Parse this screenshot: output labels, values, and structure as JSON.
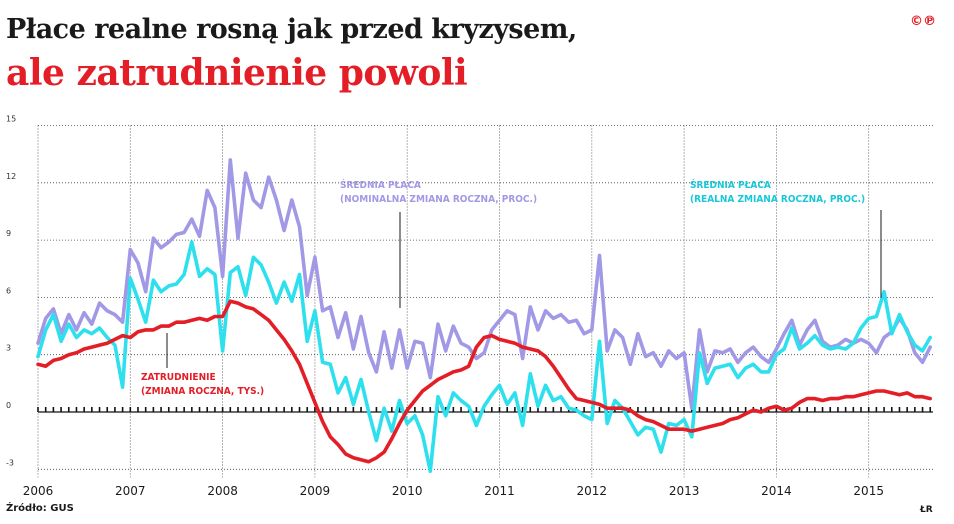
{
  "header": {
    "title_line1": "Płace realne rosną jak przed kryzysem,",
    "title_line2": "ale zatrudnienie powoli",
    "badge": "©℗"
  },
  "footer": {
    "source": "Źródło: GUS",
    "credit": "ŁR"
  },
  "colors": {
    "nominal": "#a199e6",
    "real": "#2ee0ee",
    "employment": "#e41e26",
    "title_red": "#e41e26"
  },
  "annotations": {
    "nominal_line1": "ŚREDNIA PŁACA",
    "nominal_line2": "(NOMINALNA ZMIANA ROCZNA, PROC.)",
    "real_line1": "ŚREDNIA PŁACA",
    "real_line2": "(REALNA ZMIANA ROCZNA, PROC.)",
    "employment_line1": "ZATRUDNIENIE",
    "employment_line2": "(ZMIANA ROCZNA, TYS.)"
  },
  "chart_data": {
    "type": "line",
    "ylim": [
      -3,
      15
    ],
    "yticks": [
      "15",
      "12",
      "9",
      "6",
      "3",
      "0",
      "-3"
    ],
    "xlim": [
      2006.0,
      2015.75
    ],
    "xticks": [
      "2006",
      "2007",
      "2008",
      "2009",
      "2010",
      "2011",
      "2012",
      "2013",
      "2014",
      "2015"
    ],
    "grid": true,
    "series": [
      {
        "name": "ŚREDNIA PŁACA (NOMINALNA ZMIANA ROCZNA, PROC.)",
        "x_start": 2006.0,
        "step": 0.083333,
        "values": [
          3.6,
          4.9,
          5.4,
          4.1,
          5.1,
          4.3,
          5.2,
          4.6,
          5.7,
          5.3,
          5.1,
          4.7,
          8.5,
          7.8,
          6.3,
          9.1,
          8.6,
          8.9,
          9.3,
          9.4,
          10.1,
          9.2,
          11.6,
          10.7,
          7.1,
          13.2,
          9.1,
          12.5,
          11.1,
          10.7,
          12.3,
          11.1,
          9.5,
          11.1,
          9.7,
          6.1,
          8.1,
          5.3,
          5.5,
          3.9,
          5.2,
          3.3,
          5.0,
          3.1,
          2.1,
          4.2,
          2.3,
          4.3,
          2.3,
          3.7,
          3.6,
          1.8,
          4.6,
          3.2,
          4.5,
          3.6,
          3.4,
          2.8,
          3.1,
          4.3,
          4.8,
          5.3,
          5.1,
          2.8,
          5.5,
          4.3,
          5.3,
          4.9,
          5.1,
          4.7,
          4.8,
          4.1,
          4.3,
          8.2,
          3.2,
          4.3,
          3.9,
          2.5,
          4.1,
          2.9,
          3.1,
          2.4,
          3.2,
          2.8,
          3.1,
          0.2,
          4.3,
          2.1,
          3.2,
          3.1,
          3.3,
          2.6,
          3.1,
          3.4,
          2.9,
          2.6,
          3.3,
          4.1,
          4.8,
          3.5,
          4.3,
          4.8,
          3.7,
          3.4,
          3.5,
          3.8,
          3.6,
          3.8,
          3.6,
          3.1,
          3.9,
          4.2,
          4.9,
          4.3,
          3.1,
          2.6,
          3.4
        ]
      },
      {
        "name": "ŚREDNIA PŁACA (REALNA ZMIANA ROCZNA, PROC.)",
        "x_start": 2006.0,
        "step": 0.083333,
        "values": [
          2.9,
          4.3,
          5.1,
          3.7,
          4.6,
          3.9,
          4.3,
          4.1,
          4.4,
          3.9,
          3.5,
          1.3,
          7.0,
          5.9,
          4.7,
          6.9,
          6.3,
          6.6,
          6.7,
          7.2,
          8.9,
          7.1,
          7.5,
          7.2,
          3.2,
          7.3,
          7.6,
          6.1,
          8.1,
          7.7,
          6.8,
          5.7,
          6.8,
          5.8,
          7.2,
          3.7,
          5.3,
          2.6,
          2.5,
          1.0,
          1.8,
          0.4,
          1.7,
          0.0,
          -1.5,
          0.2,
          -1.0,
          0.6,
          -0.6,
          -0.2,
          -1.2,
          -3.1,
          0.8,
          -0.2,
          1.0,
          0.6,
          0.3,
          -0.7,
          0.3,
          0.9,
          1.4,
          0.4,
          1.0,
          -0.7,
          2.0,
          0.3,
          1.4,
          0.6,
          0.8,
          0.2,
          0.1,
          -0.2,
          -0.4,
          3.7,
          -0.6,
          0.6,
          0.2,
          -0.5,
          -1.2,
          -0.8,
          -0.9,
          -2.1,
          -0.6,
          -0.7,
          -0.4,
          -1.3,
          3.1,
          1.5,
          2.3,
          2.4,
          2.5,
          1.8,
          2.3,
          2.5,
          2.1,
          2.1,
          3.0,
          3.3,
          4.4,
          3.3,
          3.6,
          4.0,
          3.5,
          3.3,
          3.4,
          3.3,
          3.6,
          4.4,
          4.9,
          5.0,
          6.3,
          4.1,
          5.1,
          4.2,
          3.5,
          3.2,
          3.9
        ]
      },
      {
        "name": "ZATRUDNIENIE (ZMIANA ROCZNA, TYS.)",
        "x_start": 2006.0,
        "step": 0.083333,
        "values": [
          2.5,
          2.4,
          2.7,
          2.8,
          3.0,
          3.1,
          3.3,
          3.4,
          3.5,
          3.6,
          3.8,
          4.0,
          3.9,
          4.2,
          4.3,
          4.3,
          4.5,
          4.5,
          4.7,
          4.7,
          4.8,
          4.9,
          4.8,
          5.0,
          5.0,
          5.8,
          5.7,
          5.5,
          5.4,
          5.1,
          4.8,
          4.3,
          3.8,
          3.2,
          2.5,
          1.5,
          0.5,
          -0.5,
          -1.3,
          -1.7,
          -2.2,
          -2.4,
          -2.5,
          -2.6,
          -2.4,
          -2.1,
          -1.4,
          -0.6,
          0.1,
          0.6,
          1.1,
          1.4,
          1.7,
          1.9,
          2.1,
          2.2,
          2.4,
          3.4,
          3.9,
          4.0,
          3.8,
          3.7,
          3.6,
          3.4,
          3.3,
          3.2,
          2.9,
          2.4,
          1.8,
          1.2,
          0.7,
          0.6,
          0.5,
          0.4,
          0.2,
          0.2,
          0.2,
          0.1,
          -0.2,
          -0.4,
          -0.5,
          -0.7,
          -0.9,
          -0.9,
          -0.9,
          -1.0,
          -0.9,
          -0.8,
          -0.7,
          -0.6,
          -0.4,
          -0.3,
          -0.1,
          0.1,
          0.0,
          0.2,
          0.3,
          0.1,
          0.2,
          0.5,
          0.7,
          0.7,
          0.6,
          0.7,
          0.7,
          0.8,
          0.8,
          0.9,
          1.0,
          1.1,
          1.1,
          1.0,
          0.9,
          1.0,
          0.8,
          0.8,
          0.7
        ]
      }
    ]
  }
}
